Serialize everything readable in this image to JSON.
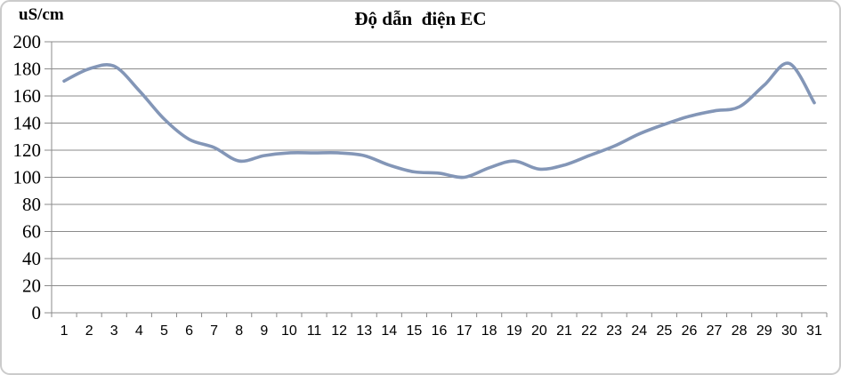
{
  "title": "Độ dẫn  điện EC",
  "y_axis_unit": "uS/cm",
  "colors": {
    "series_line": "#8396B7",
    "gridline": "#8B8B8B",
    "axis": "#8B8B8B",
    "text": "#000000",
    "frame_border": "#CBCBCB",
    "background": "#FFFFFF"
  },
  "chart_data": {
    "type": "line",
    "title": "Độ dẫn  điện EC",
    "ylabel": "uS/cm",
    "xlabel": "",
    "x": [
      1,
      2,
      3,
      4,
      5,
      6,
      7,
      8,
      9,
      10,
      11,
      12,
      13,
      14,
      15,
      16,
      17,
      18,
      19,
      20,
      21,
      22,
      23,
      24,
      25,
      26,
      27,
      28,
      29,
      30,
      31
    ],
    "series": [
      {
        "name": "EC",
        "values": [
          171,
          180,
          182,
          164,
          143,
          128,
          122,
          112,
          116,
          118,
          118,
          118,
          116,
          109,
          104,
          103,
          100,
          107,
          112,
          106,
          109,
          116,
          123,
          132,
          139,
          145,
          149,
          152,
          168,
          184,
          155
        ]
      }
    ],
    "ylim": [
      0,
      200
    ],
    "yticks": [
      0,
      20,
      40,
      60,
      80,
      100,
      120,
      140,
      160,
      180,
      200
    ],
    "grid": true,
    "legend": false,
    "smooth_line": true,
    "line_color": "#8396B7"
  }
}
